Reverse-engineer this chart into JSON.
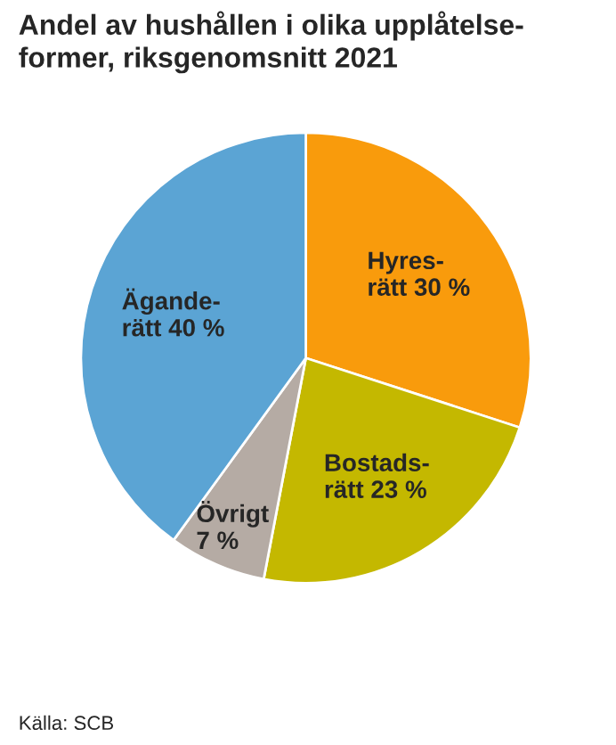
{
  "chart_data": {
    "type": "pie",
    "title": "Andel av hushållen i olika upplåtelse-\nformer, riksgenomsnitt 2021",
    "categories": [
      "Hyres-\nrätt",
      "Bostads-\nrätt",
      "Övrigt",
      "Ägande-\nrätt"
    ],
    "values": [
      30,
      23,
      7,
      40
    ],
    "value_labels": [
      "30 %",
      "23 %",
      "7 %",
      "40 %"
    ],
    "colors": [
      "#f99b0c",
      "#c4b800",
      "#b5aba4",
      "#5ba4d4"
    ],
    "annotations": [
      "Källa: SCB"
    ]
  }
}
